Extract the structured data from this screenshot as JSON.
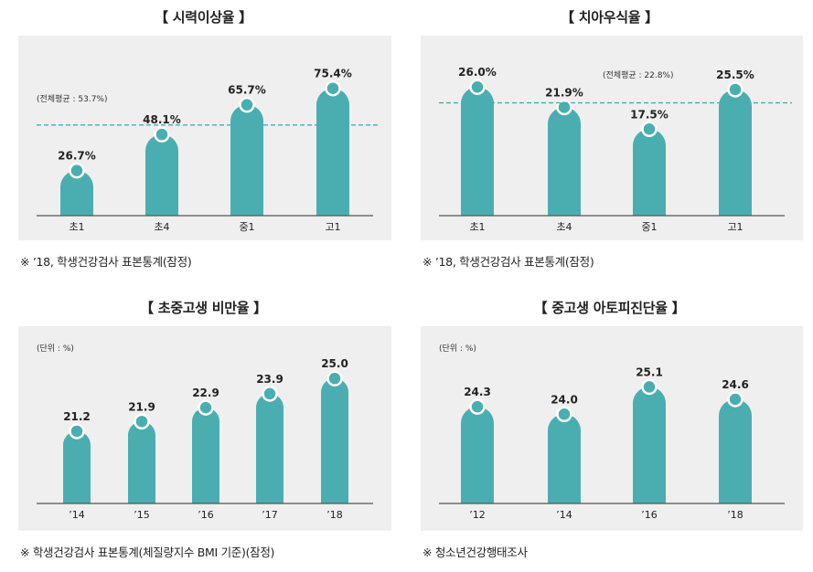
{
  "colors": {
    "bar": "#4aaeb0",
    "dot": "#4aaeb0",
    "avg_line": "#4aaeb0",
    "panel": "#efefef",
    "axis": "#555555"
  },
  "chart_data": [
    {
      "type": "bar",
      "title": "【 시력이상율 】",
      "categories": [
        "초1",
        "초4",
        "중1",
        "고1"
      ],
      "values": [
        26.7,
        48.1,
        65.7,
        75.4
      ],
      "value_labels": [
        "26.7%",
        "48.1%",
        "65.7%",
        "75.4%"
      ],
      "average": 53.7,
      "average_label": "(전체평균 : 53.7%)",
      "unit_label": "",
      "ylim": [
        0,
        85
      ],
      "grid": false,
      "note": "※ ’18, 학생건강검사 표본통계(잠정)"
    },
    {
      "type": "bar",
      "title": "【 치아우식율 】",
      "categories": [
        "초1",
        "초4",
        "중1",
        "고1"
      ],
      "values": [
        26.0,
        21.9,
        17.5,
        25.5
      ],
      "value_labels": [
        "26.0%",
        "21.9%",
        "17.5%",
        "25.5%"
      ],
      "average": 22.8,
      "average_label": "(전체평균 : 22.8%)",
      "unit_label": "",
      "ylim": [
        0,
        29
      ],
      "grid": false,
      "note": "※ ’18, 학생건강검사 표본통계(잠정)"
    },
    {
      "type": "bar",
      "title": "【 초중고생 비만율 】",
      "categories": [
        "’14",
        "’15",
        "’16",
        "’17",
        "’18"
      ],
      "values": [
        21.2,
        21.9,
        22.9,
        23.9,
        25.0
      ],
      "value_labels": [
        "21.2",
        "21.9",
        "22.9",
        "23.9",
        "25.0"
      ],
      "unit_label": "(단위 : %)",
      "ylim": [
        16.0,
        26.0
      ],
      "grid": false,
      "note": "※ 학생건강검사 표본통계(체질량지수 BMI 기준)(잠정)"
    },
    {
      "type": "bar",
      "title": "【 중고생 아토피진단율 】",
      "categories": [
        "’12",
        "’14",
        "’16",
        "’18"
      ],
      "values": [
        24.3,
        24.0,
        25.1,
        24.6
      ],
      "value_labels": [
        "24.3",
        "24.0",
        "25.1",
        "24.6"
      ],
      "unit_label": "(단위 : %)",
      "ylim": [
        20.4,
        26.0
      ],
      "grid": false,
      "note": "※ 청소년건강행태조사"
    }
  ]
}
